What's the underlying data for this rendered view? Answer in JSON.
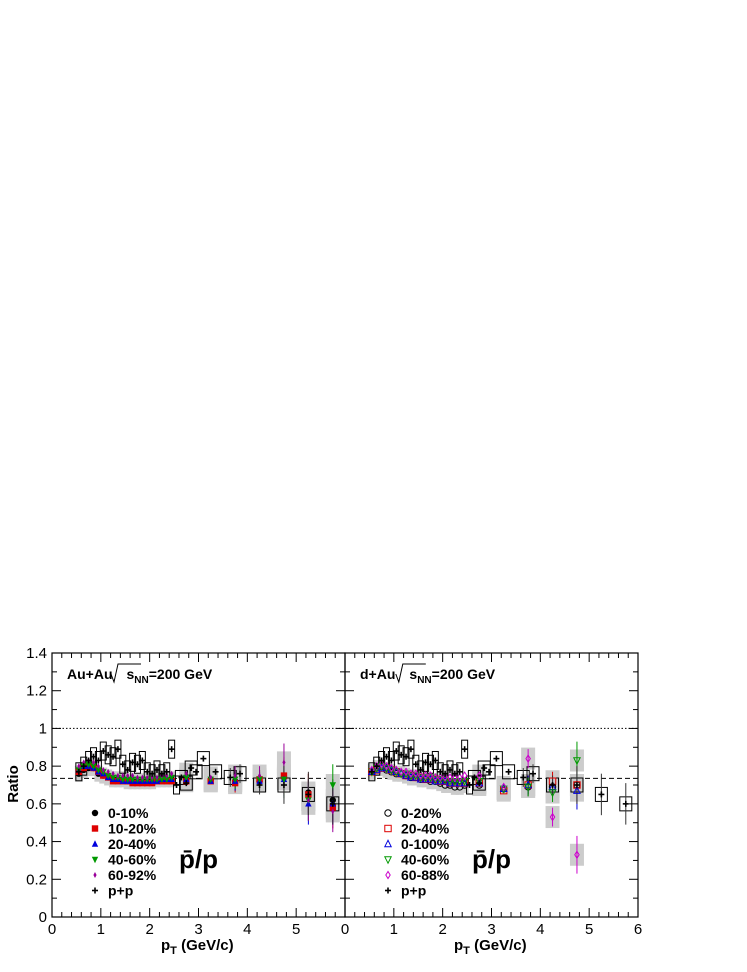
{
  "chart_data": [
    {
      "type": "scatter",
      "panel": "left",
      "title": "Au+Au √sNN=200 GeV",
      "title_parts": {
        "system": "Au+Au",
        "s": "s",
        "sub": "NN",
        "energy": "=200 GeV"
      },
      "ratio_label": "p̄/p",
      "ylabel": "Ratio",
      "xlabel": "pT (GeV/c)",
      "xlabel_parts": {
        "p": "p",
        "sub": "T",
        "rest": " (GeV/c)"
      },
      "xlim": [
        0,
        6
      ],
      "ylim": [
        0,
        1.4
      ],
      "xticks": [
        "0",
        "1",
        "2",
        "3",
        "4",
        "5"
      ],
      "yticks": [
        "0",
        "0.2",
        "0.4",
        "0.6",
        "0.8",
        "1",
        "1.2",
        "1.4"
      ],
      "reference_lines": [
        {
          "y": 1.0,
          "style": "dotted"
        },
        {
          "y": 0.735,
          "style": "dashed"
        }
      ],
      "series": [
        {
          "name": "0-10%",
          "marker": "filled-circle",
          "color": "#000000",
          "x": [
            0.55,
            0.65,
            0.75,
            0.85,
            0.95,
            1.05,
            1.15,
            1.25,
            1.35,
            1.45,
            1.55,
            1.65,
            1.75,
            1.85,
            1.95,
            2.05,
            2.15,
            2.25,
            2.35,
            2.45,
            2.75,
            3.25,
            3.75,
            4.25,
            4.75,
            5.25,
            5.75
          ],
          "y": [
            0.76,
            0.78,
            0.79,
            0.79,
            0.76,
            0.75,
            0.74,
            0.73,
            0.73,
            0.73,
            0.72,
            0.72,
            0.72,
            0.72,
            0.72,
            0.72,
            0.73,
            0.73,
            0.73,
            0.73,
            0.73,
            0.73,
            0.72,
            0.72,
            0.74,
            0.66,
            0.62
          ]
        },
        {
          "name": "10-20%",
          "marker": "filled-square",
          "color": "#dd0000",
          "x": [
            0.55,
            0.65,
            0.75,
            0.85,
            0.95,
            1.05,
            1.15,
            1.25,
            1.35,
            1.45,
            1.55,
            1.65,
            1.75,
            1.85,
            1.95,
            2.05,
            2.15,
            2.25,
            2.35,
            2.45,
            2.75,
            3.25,
            3.75,
            4.25,
            4.75,
            5.25,
            5.75
          ],
          "y": [
            0.77,
            0.79,
            0.8,
            0.79,
            0.77,
            0.75,
            0.74,
            0.72,
            0.72,
            0.72,
            0.72,
            0.71,
            0.71,
            0.71,
            0.71,
            0.71,
            0.72,
            0.72,
            0.72,
            0.72,
            0.72,
            0.72,
            0.71,
            0.73,
            0.75,
            0.65,
            0.58
          ]
        },
        {
          "name": "20-40%",
          "marker": "filled-triangle-up",
          "color": "#0000dd",
          "x": [
            0.55,
            0.65,
            0.75,
            0.85,
            0.95,
            1.05,
            1.15,
            1.25,
            1.35,
            1.45,
            1.55,
            1.65,
            1.75,
            1.85,
            1.95,
            2.05,
            2.15,
            2.25,
            2.35,
            2.45,
            2.75,
            3.25,
            3.75,
            4.25,
            4.75,
            5.25,
            5.75
          ],
          "y": [
            0.78,
            0.8,
            0.8,
            0.79,
            0.77,
            0.76,
            0.74,
            0.73,
            0.73,
            0.72,
            0.72,
            0.72,
            0.72,
            0.72,
            0.72,
            0.72,
            0.72,
            0.73,
            0.73,
            0.73,
            0.73,
            0.72,
            0.72,
            0.72,
            0.73,
            0.6,
            0.6
          ]
        },
        {
          "name": "40-60%",
          "marker": "filled-triangle-down",
          "color": "#009900",
          "x": [
            0.55,
            0.65,
            0.75,
            0.85,
            0.95,
            1.05,
            1.15,
            1.25,
            1.35,
            1.45,
            1.55,
            1.65,
            1.75,
            1.85,
            1.95,
            2.05,
            2.15,
            2.25,
            2.35,
            2.45,
            2.75,
            3.25,
            3.75,
            4.25,
            4.75,
            5.25,
            5.75
          ],
          "y": [
            0.78,
            0.8,
            0.81,
            0.8,
            0.78,
            0.77,
            0.75,
            0.74,
            0.74,
            0.73,
            0.73,
            0.73,
            0.73,
            0.73,
            0.73,
            0.73,
            0.73,
            0.73,
            0.73,
            0.74,
            0.74,
            0.73,
            0.73,
            0.73,
            0.73,
            0.62,
            0.7
          ]
        },
        {
          "name": "60-92%",
          "marker": "filled-diamond",
          "color": "#990099",
          "x": [
            0.55,
            0.65,
            0.75,
            0.85,
            0.95,
            1.05,
            1.15,
            1.25,
            1.35,
            1.45,
            1.55,
            1.65,
            1.75,
            1.85,
            1.95,
            2.05,
            2.15,
            2.25,
            2.35,
            2.45,
            2.75,
            3.25,
            3.75,
            4.25,
            4.75,
            5.25,
            5.75
          ],
          "y": [
            0.8,
            0.82,
            0.83,
            0.82,
            0.8,
            0.78,
            0.77,
            0.76,
            0.75,
            0.75,
            0.75,
            0.75,
            0.74,
            0.74,
            0.74,
            0.74,
            0.74,
            0.75,
            0.75,
            0.76,
            0.76,
            0.74,
            0.75,
            0.75,
            0.82,
            0.62,
            0.56
          ]
        },
        {
          "name": "p+p",
          "marker": "cross",
          "color": "#000000",
          "x": [
            0.55,
            0.65,
            0.75,
            0.85,
            0.95,
            1.05,
            1.15,
            1.25,
            1.35,
            1.45,
            1.55,
            1.65,
            1.75,
            1.85,
            1.95,
            2.05,
            2.15,
            2.25,
            2.35,
            2.45,
            2.55,
            2.65,
            2.75,
            2.85,
            2.95,
            3.1,
            3.35,
            3.65,
            3.85,
            4.25,
            4.75,
            5.25,
            5.75
          ],
          "y": [
            0.77,
            0.8,
            0.83,
            0.85,
            0.83,
            0.88,
            0.86,
            0.85,
            0.89,
            0.81,
            0.78,
            0.82,
            0.81,
            0.83,
            0.77,
            0.76,
            0.78,
            0.76,
            0.77,
            0.89,
            0.7,
            0.74,
            0.71,
            0.79,
            0.77,
            0.84,
            0.77,
            0.74,
            0.76,
            0.7,
            0.7,
            0.65,
            0.6
          ]
        }
      ],
      "legend": {
        "placement": "lower-left",
        "entries": [
          "0-10%",
          "10-20%",
          "20-40%",
          "40-60%",
          "60-92%",
          "p+p"
        ]
      }
    },
    {
      "type": "scatter",
      "panel": "right",
      "title": "d+Au √sNN=200 GeV",
      "title_parts": {
        "system": "d+Au",
        "s": "s",
        "sub": "NN",
        "energy": "=200 GeV"
      },
      "ratio_label": "p̄/p",
      "xlabel": "pT (GeV/c)",
      "xlabel_parts": {
        "p": "p",
        "sub": "T",
        "rest": " (GeV/c)"
      },
      "xlim": [
        0,
        6
      ],
      "ylim": [
        0,
        1.4
      ],
      "xticks": [
        "0",
        "1",
        "2",
        "3",
        "4",
        "5",
        "6"
      ],
      "reference_lines": [
        {
          "y": 1.0,
          "style": "dotted"
        },
        {
          "y": 0.735,
          "style": "dashed"
        }
      ],
      "series": [
        {
          "name": "0-20%",
          "marker": "open-circle",
          "color": "#000000",
          "x": [
            0.55,
            0.65,
            0.75,
            0.85,
            0.95,
            1.05,
            1.15,
            1.25,
            1.35,
            1.45,
            1.55,
            1.65,
            1.75,
            1.85,
            1.95,
            2.05,
            2.15,
            2.25,
            2.35,
            2.45,
            2.75,
            3.25,
            3.75,
            4.25,
            4.75
          ],
          "y": [
            0.77,
            0.79,
            0.79,
            0.78,
            0.77,
            0.76,
            0.76,
            0.75,
            0.74,
            0.74,
            0.73,
            0.73,
            0.72,
            0.72,
            0.71,
            0.7,
            0.7,
            0.69,
            0.69,
            0.7,
            0.7,
            0.68,
            0.69,
            0.69,
            0.7
          ]
        },
        {
          "name": "20-40%",
          "marker": "open-square",
          "color": "#dd0000",
          "x": [
            0.55,
            0.65,
            0.75,
            0.85,
            0.95,
            1.05,
            1.15,
            1.25,
            1.35,
            1.45,
            1.55,
            1.65,
            1.75,
            1.85,
            1.95,
            2.05,
            2.15,
            2.25,
            2.35,
            2.45,
            2.75,
            3.25,
            3.75,
            4.25,
            4.75
          ],
          "y": [
            0.77,
            0.78,
            0.79,
            0.79,
            0.78,
            0.77,
            0.76,
            0.75,
            0.75,
            0.74,
            0.74,
            0.73,
            0.73,
            0.73,
            0.72,
            0.72,
            0.71,
            0.71,
            0.71,
            0.71,
            0.71,
            0.67,
            0.7,
            0.72,
            0.7
          ]
        },
        {
          "name": "0-100%",
          "marker": "open-triangle-up",
          "color": "#0000dd",
          "x": [
            0.55,
            0.65,
            0.75,
            0.85,
            0.95,
            1.05,
            1.15,
            1.25,
            1.35,
            1.45,
            1.55,
            1.65,
            1.75,
            1.85,
            1.95,
            2.05,
            2.15,
            2.25,
            2.35,
            2.45,
            2.75,
            3.25,
            3.75,
            4.25,
            4.75
          ],
          "y": [
            0.77,
            0.78,
            0.79,
            0.79,
            0.78,
            0.77,
            0.76,
            0.75,
            0.74,
            0.74,
            0.73,
            0.73,
            0.73,
            0.72,
            0.72,
            0.72,
            0.71,
            0.71,
            0.71,
            0.71,
            0.71,
            0.68,
            0.7,
            0.69,
            0.67
          ]
        },
        {
          "name": "40-60%",
          "marker": "open-triangle-down",
          "color": "#009900",
          "x": [
            0.55,
            0.65,
            0.75,
            0.85,
            0.95,
            1.05,
            1.15,
            1.25,
            1.35,
            1.45,
            1.55,
            1.65,
            1.75,
            1.85,
            1.95,
            2.05,
            2.15,
            2.25,
            2.35,
            2.45,
            2.75,
            3.25,
            3.75,
            4.25,
            4.75
          ],
          "y": [
            0.77,
            0.79,
            0.8,
            0.79,
            0.78,
            0.77,
            0.76,
            0.76,
            0.75,
            0.75,
            0.74,
            0.74,
            0.74,
            0.73,
            0.73,
            0.73,
            0.72,
            0.72,
            0.72,
            0.72,
            0.72,
            0.68,
            0.69,
            0.66,
            0.83
          ]
        },
        {
          "name": "60-88%",
          "marker": "open-diamond",
          "color": "#cc00cc",
          "x": [
            0.55,
            0.65,
            0.75,
            0.85,
            0.95,
            1.05,
            1.15,
            1.25,
            1.35,
            1.45,
            1.55,
            1.65,
            1.75,
            1.85,
            1.95,
            2.05,
            2.15,
            2.25,
            2.35,
            2.45,
            2.75,
            3.25,
            3.75,
            4.25,
            4.75
          ],
          "y": [
            0.78,
            0.8,
            0.81,
            0.8,
            0.79,
            0.78,
            0.77,
            0.77,
            0.76,
            0.76,
            0.75,
            0.75,
            0.75,
            0.74,
            0.74,
            0.74,
            0.74,
            0.74,
            0.74,
            0.75,
            0.75,
            0.69,
            0.84,
            0.53,
            0.33
          ]
        },
        {
          "name": "p+p",
          "marker": "cross",
          "color": "#000000",
          "x": [
            0.55,
            0.65,
            0.75,
            0.85,
            0.95,
            1.05,
            1.15,
            1.25,
            1.35,
            1.45,
            1.55,
            1.65,
            1.75,
            1.85,
            1.95,
            2.05,
            2.15,
            2.25,
            2.35,
            2.45,
            2.55,
            2.65,
            2.75,
            2.85,
            2.95,
            3.1,
            3.35,
            3.65,
            3.85,
            4.25,
            4.75,
            5.25,
            5.75
          ],
          "y": [
            0.77,
            0.8,
            0.83,
            0.85,
            0.83,
            0.88,
            0.86,
            0.85,
            0.89,
            0.81,
            0.78,
            0.82,
            0.81,
            0.83,
            0.77,
            0.76,
            0.78,
            0.76,
            0.77,
            0.89,
            0.7,
            0.74,
            0.71,
            0.79,
            0.77,
            0.84,
            0.77,
            0.74,
            0.76,
            0.7,
            0.7,
            0.65,
            0.6
          ]
        }
      ],
      "legend": {
        "placement": "lower-left",
        "entries": [
          "0-20%",
          "20-40%",
          "0-100%",
          "40-60%",
          "60-88%",
          "p+p"
        ]
      }
    }
  ]
}
